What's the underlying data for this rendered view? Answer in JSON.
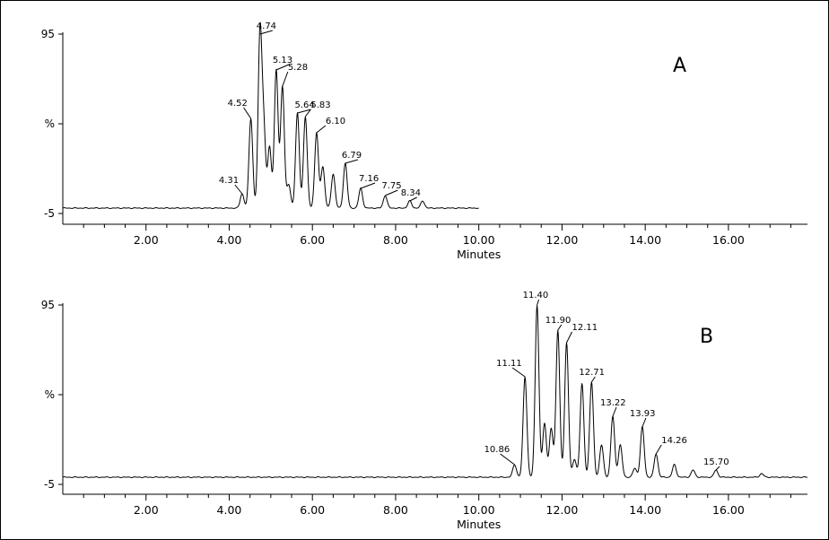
{
  "chart_data": [
    {
      "type": "line",
      "panel_label": "A",
      "xlabel": "Minutes",
      "ylabel": "%",
      "yticks": [
        "95",
        "%",
        "-5"
      ],
      "xticks": [
        "2.00",
        "4.00",
        "6.00",
        "8.00",
        "10.00",
        "12.00",
        "14.00",
        "16.00"
      ],
      "xlim": [
        0,
        17.9
      ],
      "ylim": [
        -5,
        95
      ],
      "grid": false,
      "baseline": -2,
      "trace_range": [
        0,
        10.0
      ],
      "peaks": [
        {
          "x": 4.31,
          "y": 6,
          "label": "4.31"
        },
        {
          "x": 4.52,
          "y": 48,
          "label": "4.52"
        },
        {
          "x": 4.74,
          "y": 95,
          "label": "4.74"
        },
        {
          "x": 4.83,
          "y": 41,
          "label": ""
        },
        {
          "x": 4.97,
          "y": 32,
          "label": ""
        },
        {
          "x": 5.13,
          "y": 75,
          "label": "5.13"
        },
        {
          "x": 5.28,
          "y": 66,
          "label": "5.28"
        },
        {
          "x": 5.43,
          "y": 11,
          "label": ""
        },
        {
          "x": 5.64,
          "y": 51,
          "label": "5.64"
        },
        {
          "x": 5.83,
          "y": 49,
          "label": "5.83"
        },
        {
          "x": 6.1,
          "y": 40,
          "label": "6.10"
        },
        {
          "x": 6.25,
          "y": 21,
          "label": ""
        },
        {
          "x": 6.5,
          "y": 17,
          "label": ""
        },
        {
          "x": 6.79,
          "y": 23,
          "label": "6.79"
        },
        {
          "x": 7.16,
          "y": 9,
          "label": "7.16"
        },
        {
          "x": 7.75,
          "y": 5,
          "label": "7.75"
        },
        {
          "x": 8.34,
          "y": 2,
          "label": "8.34"
        },
        {
          "x": 8.65,
          "y": 2,
          "label": ""
        }
      ]
    },
    {
      "type": "line",
      "panel_label": "B",
      "xlabel": "Minutes",
      "ylabel": "%",
      "yticks": [
        "95",
        "%",
        "-5"
      ],
      "xticks": [
        "2.00",
        "4.00",
        "6.00",
        "8.00",
        "10.00",
        "12.00",
        "14.00",
        "16.00"
      ],
      "xlim": [
        0,
        17.9
      ],
      "ylim": [
        -5,
        95
      ],
      "grid": false,
      "baseline": -1,
      "trace_range": [
        0,
        17.9
      ],
      "peaks": [
        {
          "x": 10.86,
          "y": 6,
          "label": "10.86"
        },
        {
          "x": 11.11,
          "y": 55,
          "label": "11.11"
        },
        {
          "x": 11.4,
          "y": 95,
          "label": "11.40"
        },
        {
          "x": 11.58,
          "y": 29,
          "label": ""
        },
        {
          "x": 11.74,
          "y": 26,
          "label": ""
        },
        {
          "x": 11.9,
          "y": 81,
          "label": "11.90"
        },
        {
          "x": 12.11,
          "y": 74,
          "label": "12.11"
        },
        {
          "x": 12.3,
          "y": 9,
          "label": ""
        },
        {
          "x": 12.48,
          "y": 51,
          "label": ""
        },
        {
          "x": 12.71,
          "y": 52,
          "label": "12.71"
        },
        {
          "x": 12.95,
          "y": 17,
          "label": ""
        },
        {
          "x": 13.22,
          "y": 33,
          "label": "13.22"
        },
        {
          "x": 13.4,
          "y": 17,
          "label": ""
        },
        {
          "x": 13.75,
          "y": 4,
          "label": ""
        },
        {
          "x": 13.93,
          "y": 27,
          "label": "13.93"
        },
        {
          "x": 14.26,
          "y": 12,
          "label": "14.26"
        },
        {
          "x": 14.7,
          "y": 6,
          "label": ""
        },
        {
          "x": 15.15,
          "y": 3,
          "label": ""
        },
        {
          "x": 15.7,
          "y": 3,
          "label": "15.70"
        },
        {
          "x": 16.8,
          "y": 1,
          "label": ""
        }
      ]
    }
  ]
}
